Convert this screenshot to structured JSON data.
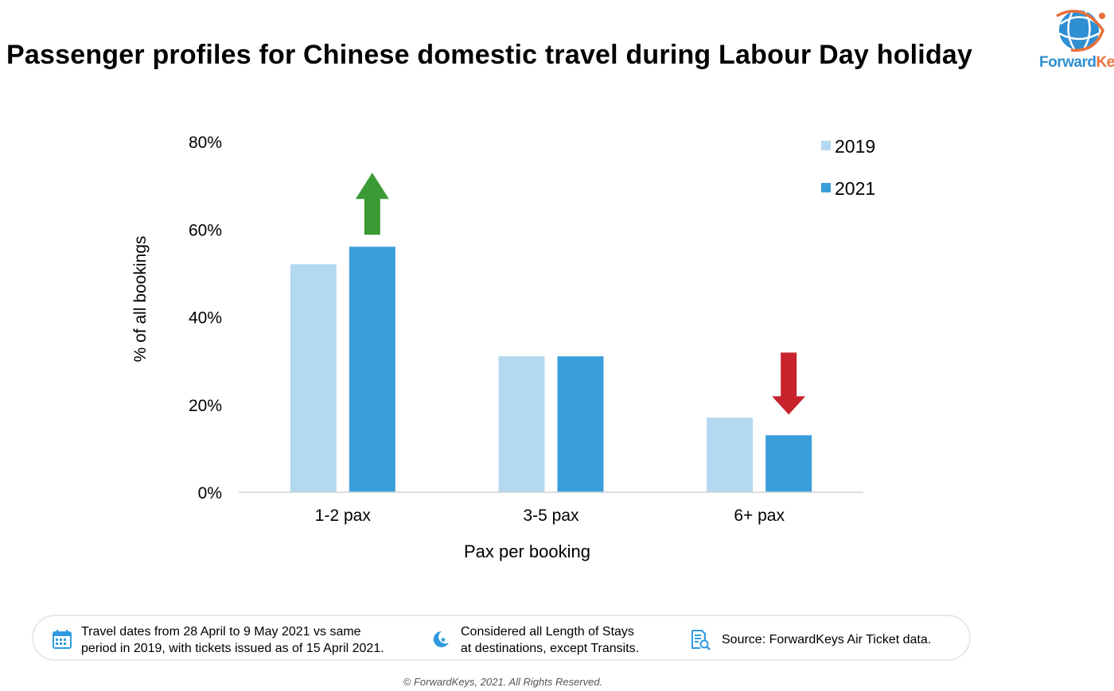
{
  "page": {
    "title": "Passenger profiles for Chinese domestic travel during Labour Day holiday",
    "logo_text_forward": "Forward",
    "logo_text_keys": "Keys"
  },
  "chart_data": {
    "type": "bar",
    "title": "",
    "xlabel": "Pax per booking",
    "ylabel": "% of all bookings",
    "categories": [
      "1-2 pax",
      "3-5 pax",
      "6+ pax"
    ],
    "series": [
      {
        "name": "2019",
        "values": [
          52,
          31,
          17
        ],
        "color": "#b3d9f0"
      },
      {
        "name": "2021",
        "values": [
          56,
          31,
          13
        ],
        "color": "#3a9edb"
      }
    ],
    "ylim": [
      0,
      80
    ],
    "yticks": [
      0,
      20,
      40,
      60,
      80
    ],
    "ytick_labels": [
      "0%",
      "20%",
      "40%",
      "60%",
      "80%"
    ],
    "legend": "top-right",
    "grid": false,
    "annotations": [
      {
        "type": "arrow-up",
        "category": "1-2 pax",
        "series": "2021",
        "color": "#3a9a35"
      },
      {
        "type": "arrow-down",
        "category": "6+ pax",
        "series": "2021",
        "color": "#c8232c"
      }
    ]
  },
  "footer": {
    "note1_line1": "Travel dates from 28 April to 9 May 2021 vs same",
    "note1_line2": "period in 2019, with tickets issued as of 15 April 2021.",
    "note2_line1": "Considered all Length of Stays",
    "note2_line2": "at destinations, except Transits.",
    "note3": "Source: ForwardKeys Air Ticket data.",
    "icons": [
      "calendar-icon",
      "moon-star-icon",
      "document-search-icon"
    ],
    "copyright": "© ForwardKeys, 2021. All Rights Reserved."
  }
}
